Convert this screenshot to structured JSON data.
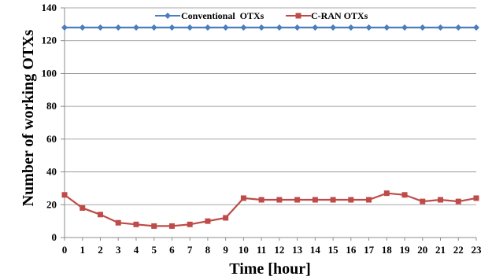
{
  "chart_data": {
    "type": "line",
    "title": "",
    "xlabel": "Time [hour]",
    "ylabel": "Number of working OTXs",
    "x": [
      0,
      1,
      2,
      3,
      4,
      5,
      6,
      7,
      8,
      9,
      10,
      11,
      12,
      13,
      14,
      15,
      16,
      17,
      18,
      19,
      20,
      21,
      22,
      23
    ],
    "x_tick_labels": [
      "0",
      "1",
      "2",
      "3",
      "4",
      "5",
      "6",
      "7",
      "8",
      "9",
      "10",
      "11",
      "12",
      "13",
      "14",
      "15",
      "16",
      "17",
      "18",
      "19",
      "20",
      "21",
      "22",
      "23"
    ],
    "ylim": [
      0,
      140
    ],
    "y_ticks": [
      0,
      20,
      40,
      60,
      80,
      100,
      120,
      140
    ],
    "y_tick_labels": [
      "0",
      "20",
      "40",
      "60",
      "80",
      "100",
      "120",
      "140"
    ],
    "grid": true,
    "legend_position": "top",
    "series": [
      {
        "name": "Conventional  OTXs",
        "color": "#4a7ebf",
        "marker": "diamond",
        "values": [
          128,
          128,
          128,
          128,
          128,
          128,
          128,
          128,
          128,
          128,
          128,
          128,
          128,
          128,
          128,
          128,
          128,
          128,
          128,
          128,
          128,
          128,
          128,
          128
        ]
      },
      {
        "name": "C-RAN OTXs",
        "color": "#be4b48",
        "marker": "square",
        "values": [
          26,
          18,
          14,
          9,
          8,
          7,
          7,
          8,
          10,
          12,
          24,
          23,
          23,
          23,
          23,
          23,
          23,
          23,
          27,
          26,
          22,
          23,
          22,
          24
        ]
      }
    ]
  }
}
